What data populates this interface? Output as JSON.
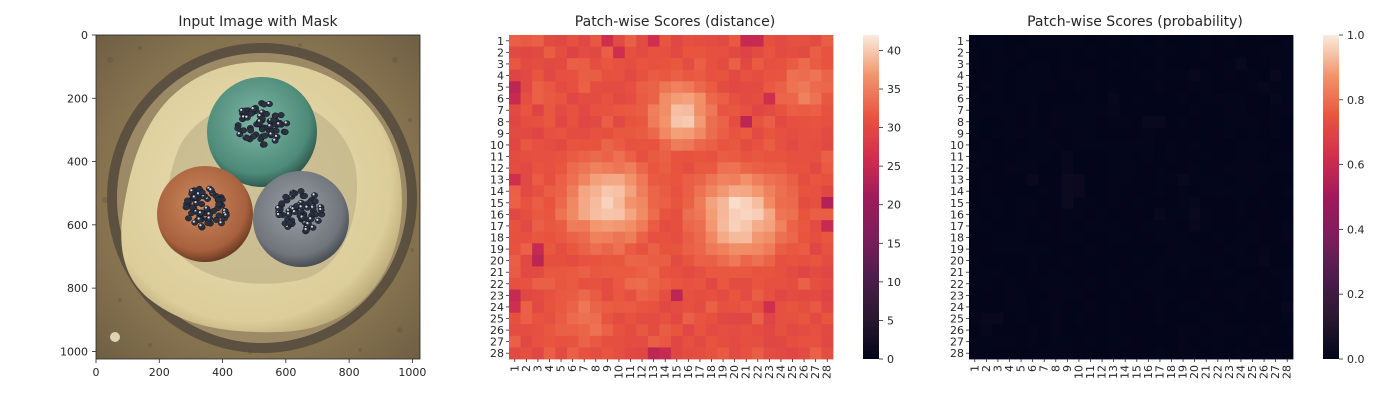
{
  "chart_data": [
    {
      "type": "image",
      "title": "Input Image with Mask",
      "xticks": [
        "0",
        "200",
        "400",
        "600",
        "800",
        "1000"
      ],
      "yticks": [
        "0",
        "200",
        "400",
        "600",
        "800",
        "1000"
      ],
      "xlim": [
        0,
        1024
      ],
      "ylim": [
        1024,
        0
      ],
      "image_description": "Top-down photograph of a cable cross-section on a brown sandy background: a cream-colored circular insulation containing three conductors — a teal/green one at top, a copper/orange one lower-left and a grey one lower-right — each with a cluster of dark metallic strands.",
      "colors": {
        "background": "#8a7656",
        "outer_ring": "#5a5045",
        "insulation": "#e2d6a6",
        "conductor_top": "#4f8f7c",
        "conductor_left": "#b06a44",
        "conductor_right": "#7b7f86",
        "strands": "#2a3040"
      }
    },
    {
      "type": "heatmap",
      "title": "Patch-wise Scores (distance)",
      "rows": 28,
      "cols": 28,
      "row_labels": [
        "1",
        "2",
        "3",
        "4",
        "5",
        "6",
        "7",
        "8",
        "9",
        "10",
        "11",
        "12",
        "13",
        "14",
        "15",
        "16",
        "17",
        "18",
        "19",
        "20",
        "21",
        "22",
        "23",
        "24",
        "25",
        "26",
        "27",
        "28"
      ],
      "col_labels": [
        "1",
        "2",
        "3",
        "4",
        "5",
        "6",
        "7",
        "8",
        "9",
        "10",
        "11",
        "12",
        "13",
        "14",
        "15",
        "16",
        "17",
        "18",
        "19",
        "20",
        "21",
        "22",
        "23",
        "24",
        "25",
        "26",
        "27",
        "28"
      ],
      "colormap": "rocket",
      "vmin": 0,
      "vmax": 42,
      "colorbar_ticks": [
        "0",
        "5",
        "10",
        "15",
        "20",
        "25",
        "30",
        "35",
        "40"
      ],
      "base_value": 30,
      "hotspots": [
        {
          "row": 7.5,
          "col": 15.5,
          "peak": 40,
          "radius": 2.6
        },
        {
          "row": 15,
          "col": 9,
          "peak": 40,
          "radius": 3.6
        },
        {
          "row": 16,
          "col": 20.5,
          "peak": 41,
          "radius": 3.6
        },
        {
          "row": 5,
          "col": 26,
          "peak": 35,
          "radius": 2.2
        },
        {
          "row": 25,
          "col": 7,
          "peak": 34,
          "radius": 2.5
        },
        {
          "row": 21,
          "col": 12,
          "peak": 33,
          "radius": 2.5
        }
      ],
      "low_cells": [
        {
          "row": 1,
          "col": 22,
          "value": 25
        },
        {
          "row": 1,
          "col": 21,
          "value": 25
        },
        {
          "row": 1,
          "col": 9,
          "value": 26
        },
        {
          "row": 1,
          "col": 13,
          "value": 26
        },
        {
          "row": 2,
          "col": 10,
          "value": 26
        },
        {
          "row": 5,
          "col": 1,
          "value": 24
        },
        {
          "row": 6,
          "col": 1,
          "value": 25
        },
        {
          "row": 6,
          "col": 23,
          "value": 26
        },
        {
          "row": 8,
          "col": 21,
          "value": 24
        },
        {
          "row": 13,
          "col": 1,
          "value": 26
        },
        {
          "row": 15,
          "col": 28,
          "value": 23
        },
        {
          "row": 17,
          "col": 28,
          "value": 25
        },
        {
          "row": 20,
          "col": 3,
          "value": 24
        },
        {
          "row": 19,
          "col": 3,
          "value": 25
        },
        {
          "row": 23,
          "col": 15,
          "value": 24
        },
        {
          "row": 23,
          "col": 1,
          "value": 25
        },
        {
          "row": 24,
          "col": 1,
          "value": 26
        },
        {
          "row": 28,
          "col": 13,
          "value": 24
        },
        {
          "row": 28,
          "col": 14,
          "value": 25
        },
        {
          "row": 24,
          "col": 23,
          "value": 26
        }
      ]
    },
    {
      "type": "heatmap",
      "title": "Patch-wise Scores (probability)",
      "rows": 28,
      "cols": 28,
      "row_labels": [
        "1",
        "2",
        "3",
        "4",
        "5",
        "6",
        "7",
        "8",
        "9",
        "10",
        "11",
        "12",
        "13",
        "14",
        "15",
        "16",
        "17",
        "18",
        "19",
        "20",
        "21",
        "22",
        "23",
        "24",
        "25",
        "26",
        "27",
        "28"
      ],
      "col_labels": [
        "1",
        "2",
        "3",
        "4",
        "5",
        "6",
        "7",
        "8",
        "9",
        "10",
        "11",
        "12",
        "13",
        "14",
        "15",
        "16",
        "17",
        "18",
        "19",
        "20",
        "21",
        "22",
        "23",
        "24",
        "25",
        "26",
        "27",
        "28"
      ],
      "colormap": "rocket",
      "vmin": 0.0,
      "vmax": 1.0,
      "colorbar_ticks": [
        "0.0",
        "0.2",
        "0.4",
        "0.6",
        "0.8",
        "1.0"
      ],
      "base_value": 0.0,
      "faint_cells": [
        {
          "row": 13,
          "col": 9,
          "value": 0.03
        },
        {
          "row": 14,
          "col": 9,
          "value": 0.03
        },
        {
          "row": 15,
          "col": 9,
          "value": 0.03
        },
        {
          "row": 13,
          "col": 10,
          "value": 0.025
        },
        {
          "row": 14,
          "col": 10,
          "value": 0.025
        },
        {
          "row": 12,
          "col": 9,
          "value": 0.015
        },
        {
          "row": 11,
          "col": 9,
          "value": 0.015
        },
        {
          "row": 13,
          "col": 6,
          "value": 0.02
        },
        {
          "row": 8,
          "col": 16,
          "value": 0.02
        },
        {
          "row": 8,
          "col": 17,
          "value": 0.02
        },
        {
          "row": 16,
          "col": 17,
          "value": 0.02
        },
        {
          "row": 16,
          "col": 20,
          "value": 0.025
        },
        {
          "row": 17,
          "col": 20,
          "value": 0.02
        },
        {
          "row": 15,
          "col": 20,
          "value": 0.015
        },
        {
          "row": 13,
          "col": 19,
          "value": 0.02
        },
        {
          "row": 4,
          "col": 20,
          "value": 0.02
        },
        {
          "row": 3,
          "col": 24,
          "value": 0.02
        },
        {
          "row": 4,
          "col": 27,
          "value": 0.02
        },
        {
          "row": 5,
          "col": 26,
          "value": 0.015
        },
        {
          "row": 6,
          "col": 27,
          "value": 0.015
        },
        {
          "row": 25,
          "col": 2,
          "value": 0.02
        },
        {
          "row": 25,
          "col": 3,
          "value": 0.02
        },
        {
          "row": 26,
          "col": 2,
          "value": 0.015
        },
        {
          "row": 24,
          "col": 28,
          "value": 0.015
        },
        {
          "row": 6,
          "col": 13,
          "value": 0.015
        },
        {
          "row": 7,
          "col": 13,
          "value": 0.012
        },
        {
          "row": 20,
          "col": 26,
          "value": 0.015
        }
      ]
    }
  ]
}
